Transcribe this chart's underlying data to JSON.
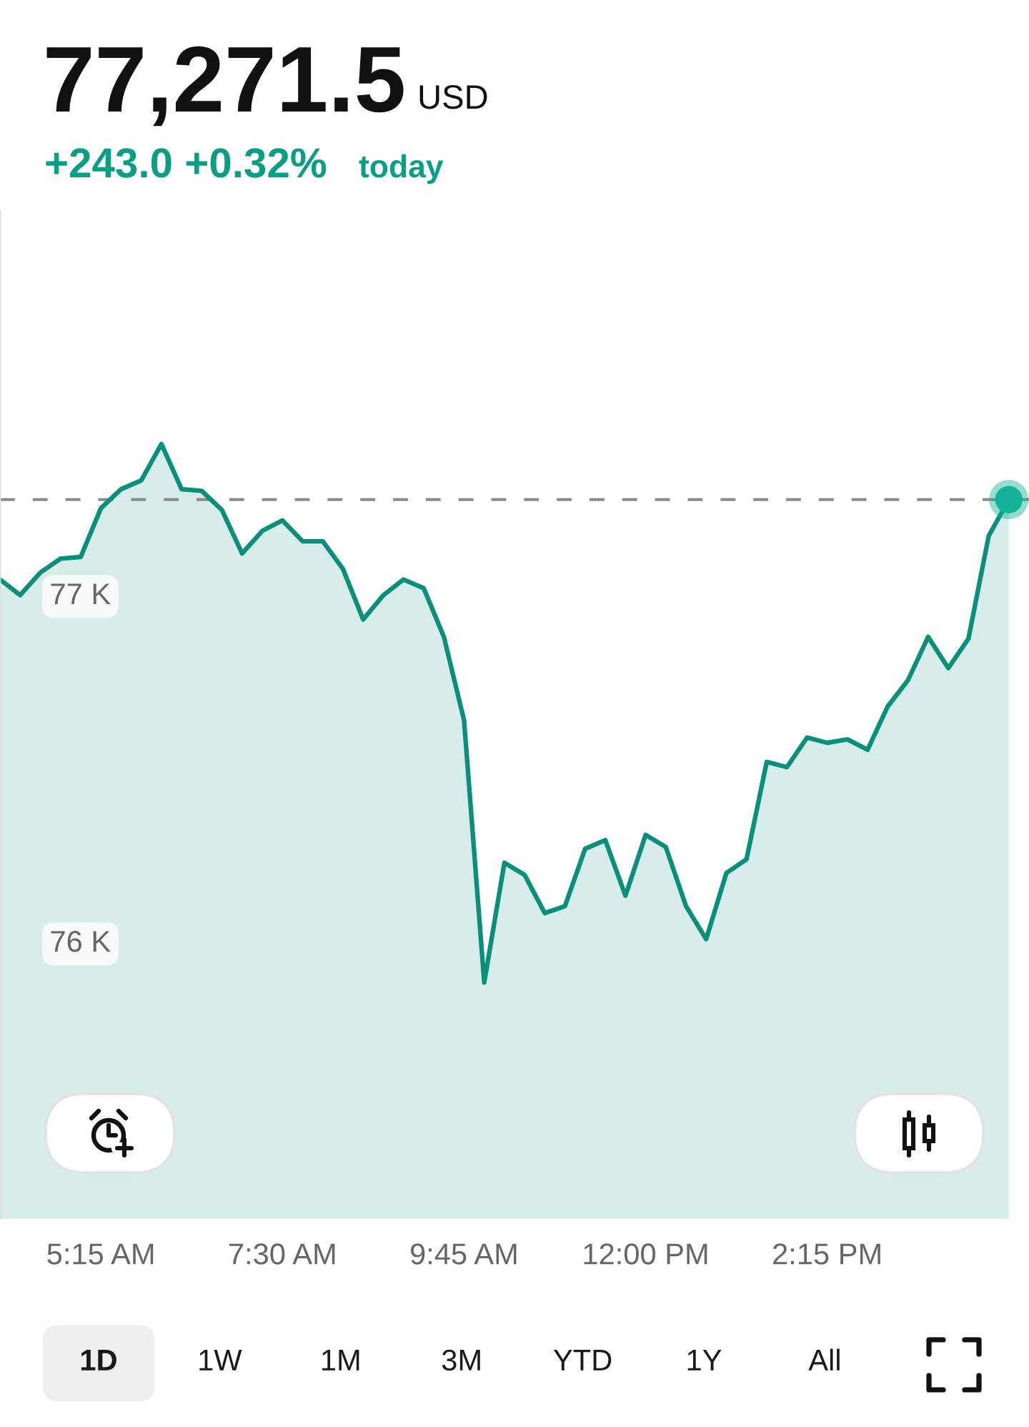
{
  "chart_data": {
    "type": "area",
    "title": "77,271.5 USD",
    "subtitle": "+243.0 +0.32% today",
    "x": [
      4,
      4.25,
      4.5,
      4.75,
      5,
      5.25,
      5.5,
      5.75,
      6,
      6.25,
      6.5,
      6.75,
      7,
      7.25,
      7.5,
      7.75,
      8,
      8.25,
      8.5,
      8.75,
      9,
      9.25,
      9.5,
      9.75,
      10,
      10.25,
      10.5,
      10.75,
      11,
      11.25,
      11.5,
      11.75,
      12,
      12.25,
      12.5,
      12.75,
      13,
      13.25,
      13.5,
      13.75,
      14,
      14.25,
      14.5,
      14.75,
      15,
      15.25,
      15.5,
      15.75,
      16,
      16.25,
      16.5
    ],
    "series": [
      {
        "color": "#0a8f7a",
        "values": [
          77040,
          76995,
          77060,
          77100,
          77105,
          77245,
          77300,
          77325,
          77430,
          77300,
          77295,
          77240,
          77115,
          77180,
          77210,
          77150,
          77150,
          77070,
          76925,
          76995,
          77040,
          77015,
          76875,
          76635,
          75880,
          76225,
          76190,
          76080,
          76100,
          76265,
          76290,
          76130,
          76305,
          76270,
          76100,
          76005,
          76195,
          76235,
          76515,
          76500,
          76585,
          76570,
          76580,
          76550,
          76675,
          76750,
          76875,
          76785,
          76870,
          77165,
          77270
        ]
      },
      {
        "type": "scatter",
        "color": "#14b397",
        "marker": "circle",
        "x": [
          16.5
        ],
        "values": [
          77270
        ]
      }
    ],
    "xlim": [
      4,
      16.75
    ],
    "xticks": [
      {
        "value": 5.25,
        "label": "5:15 AM"
      },
      {
        "value": 7.5,
        "label": "7:30 AM"
      },
      {
        "value": 9.75,
        "label": "9:45 AM"
      },
      {
        "value": 12,
        "label": "12:00 PM"
      },
      {
        "value": 14.25,
        "label": "2:15 PM"
      }
    ],
    "ylim": [
      75200,
      78100
    ],
    "yticks": [
      {
        "value": 76000,
        "label": "76 K"
      },
      {
        "value": 77000,
        "label": "77 K"
      }
    ],
    "ref_lines": [
      {
        "axis": "y",
        "value": 77270,
        "color": "#8a8a8a",
        "line_style": "dashed"
      }
    ],
    "annotations": [
      "1D",
      "1W",
      "1M",
      "3M",
      "YTD",
      "1Y",
      "All"
    ],
    "grid": false,
    "marker": "none",
    "line_style": "solid"
  }
}
